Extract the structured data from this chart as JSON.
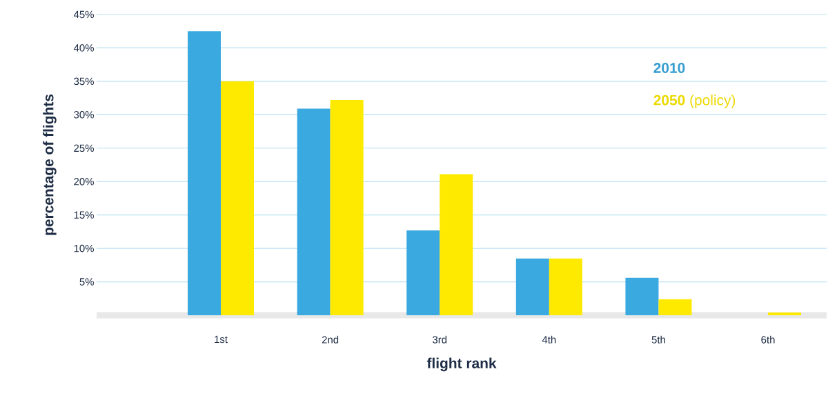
{
  "chart_data": {
    "type": "bar",
    "xlabel": "flight rank",
    "ylabel": "percentage of flights",
    "categories": [
      "1st",
      "2nd",
      "3rd",
      "4th",
      "5th",
      "6th"
    ],
    "series": [
      {
        "name": "2010",
        "color": "#3aa9e0",
        "values": [
          42.5,
          30.9,
          12.7,
          8.5,
          5.6,
          0
        ]
      },
      {
        "name": "**2050** (policy)",
        "color": "#fee900",
        "values": [
          35.0,
          32.2,
          21.1,
          8.5,
          2.4,
          0.4
        ]
      }
    ],
    "ylim": [
      0,
      45
    ],
    "yticks": [
      {
        "value": 5,
        "label": "5%"
      },
      {
        "value": 10,
        "label": "10%"
      },
      {
        "value": 15,
        "label": "15%"
      },
      {
        "value": 20,
        "label": "20%"
      },
      {
        "value": 25,
        "label": "25%"
      },
      {
        "value": 30,
        "label": "30%"
      },
      {
        "value": 35,
        "label": "35%"
      },
      {
        "value": 40,
        "label": "40%"
      },
      {
        "value": 45,
        "label": "45%"
      }
    ],
    "grid": "y",
    "legend": "top right"
  }
}
